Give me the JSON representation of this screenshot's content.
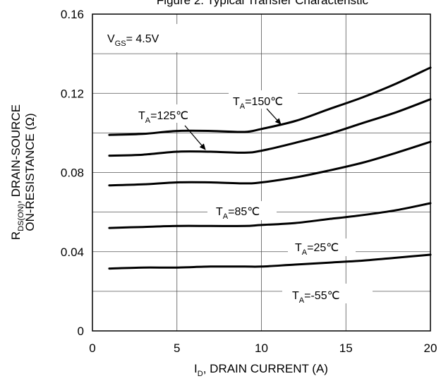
{
  "chart_data": {
    "type": "line",
    "title": "Figure 2. Typical Transfer Characteristic",
    "xlabel": {
      "main": "I",
      "sub": "D",
      "rest": ", DRAIN CURRENT (A)"
    },
    "ylabel": {
      "line1_main": "R",
      "line1_sub": "DS(ON)",
      "line1_rest": ",  DRAIN-SOURCE",
      "line2": "ON-RESISTANCE (Ω)"
    },
    "xlim": [
      0,
      20
    ],
    "ylim": [
      0,
      0.16
    ],
    "xticks": [
      "0",
      "5",
      "10",
      "15",
      "20"
    ],
    "yticks": [
      "0",
      "0.04",
      "0.08",
      "0.12",
      "0.16"
    ],
    "grid": true,
    "condition": {
      "main": "V",
      "sub": "GS",
      "rest": "= 4.5V"
    },
    "series": [
      {
        "name": "T_A=150°C",
        "label_main": "T",
        "label_sub": "A",
        "label_rest": "=150℃",
        "x": [
          1,
          3,
          5,
          7,
          9,
          10,
          12,
          14,
          16,
          18,
          20
        ],
        "y": [
          0.099,
          0.0995,
          0.101,
          0.101,
          0.1005,
          0.102,
          0.106,
          0.112,
          0.118,
          0.125,
          0.133
        ]
      },
      {
        "name": "T_A=125°C",
        "label_main": "T",
        "label_sub": "A",
        "label_rest": "=125℃",
        "x": [
          1,
          3,
          5,
          7,
          9,
          10,
          12,
          14,
          16,
          18,
          20
        ],
        "y": [
          0.0885,
          0.089,
          0.0905,
          0.0905,
          0.09,
          0.091,
          0.095,
          0.0995,
          0.105,
          0.1105,
          0.117
        ]
      },
      {
        "name": "T_A=85°C",
        "label_main": "T",
        "label_sub": "A",
        "label_rest": "=85℃",
        "x": [
          1,
          3,
          5,
          7,
          9,
          10,
          12,
          14,
          16,
          18,
          20
        ],
        "y": [
          0.0735,
          0.074,
          0.075,
          0.075,
          0.0745,
          0.075,
          0.0775,
          0.081,
          0.085,
          0.09,
          0.0955
        ]
      },
      {
        "name": "T_A=25°C",
        "label_main": "T",
        "label_sub": "A",
        "label_rest": "=25℃",
        "x": [
          1,
          3,
          5,
          7,
          9,
          10,
          12,
          14,
          16,
          18,
          20
        ],
        "y": [
          0.052,
          0.0525,
          0.053,
          0.053,
          0.053,
          0.0535,
          0.0545,
          0.0565,
          0.0585,
          0.061,
          0.0645
        ]
      },
      {
        "name": "T_A=-55°C",
        "label_main": "T",
        "label_sub": "A",
        "label_rest": "=-55℃",
        "x": [
          1,
          3,
          5,
          7,
          9,
          10,
          12,
          14,
          16,
          18,
          20
        ],
        "y": [
          0.0315,
          0.032,
          0.032,
          0.0325,
          0.0325,
          0.0325,
          0.0335,
          0.0345,
          0.0355,
          0.037,
          0.0385
        ]
      }
    ]
  }
}
